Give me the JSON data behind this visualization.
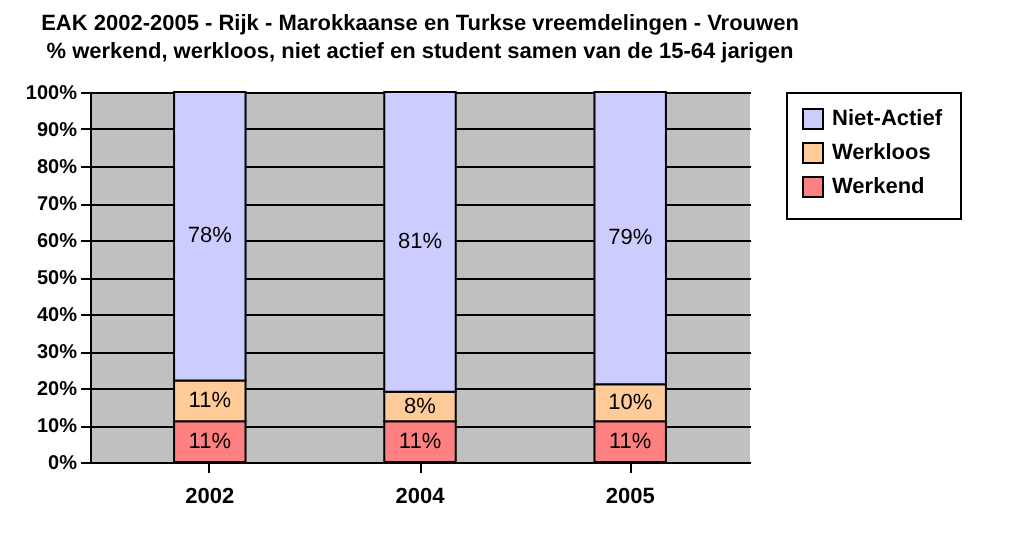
{
  "chart_data": {
    "type": "bar",
    "stacked": true,
    "title": "EAK 2002-2005 - Rijk - Marokkaanse en Turkse vreemdelingen - Vrouwen",
    "subtitle": "% werkend, werkloos, niet actief en student samen van de 15-64 jarigen",
    "categories": [
      "2002",
      "2004",
      "2005"
    ],
    "series": [
      {
        "name": "Werkend",
        "color": "#ff8080",
        "values": [
          11,
          11,
          11
        ],
        "value_labels": [
          "11%",
          "11%",
          "11%"
        ]
      },
      {
        "name": "Werkloos",
        "color": "#ffcc99",
        "values": [
          11,
          8,
          10
        ],
        "value_labels": [
          "11%",
          "8%",
          "10%"
        ]
      },
      {
        "name": "Niet-Actief",
        "color": "#ccccff",
        "values": [
          78,
          81,
          79
        ],
        "value_labels": [
          "78%",
          "81%",
          "79%"
        ]
      }
    ],
    "ylim": [
      0,
      100
    ],
    "yticks": [
      {
        "value": 0,
        "label": "0%"
      },
      {
        "value": 10,
        "label": "10%"
      },
      {
        "value": 20,
        "label": "20%"
      },
      {
        "value": 30,
        "label": "30%"
      },
      {
        "value": 40,
        "label": "40%"
      },
      {
        "value": 50,
        "label": "50%"
      },
      {
        "value": 60,
        "label": "60%"
      },
      {
        "value": 70,
        "label": "70%"
      },
      {
        "value": 80,
        "label": "80%"
      },
      {
        "value": 90,
        "label": "90%"
      },
      {
        "value": 100,
        "label": "100%"
      }
    ],
    "grid": "y",
    "legend": "right"
  }
}
